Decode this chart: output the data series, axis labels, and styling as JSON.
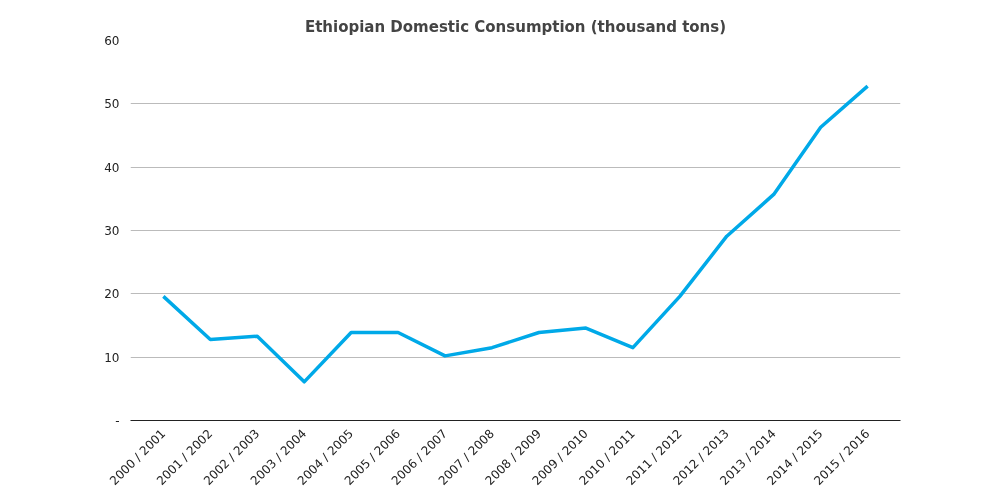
{
  "chart_data": {
    "type": "line",
    "title": "Ethiopian Domestic Consumption (thousand tons)",
    "categories": [
      "2000 / 2001",
      "2001 / 2002",
      "2002 / 2003",
      "2003 / 2004",
      "2004 / 2005",
      "2005 / 2006",
      "2006 / 2007",
      "2007 / 2008",
      "2008 / 2009",
      "2009 / 2010",
      "2010 / 2011",
      "2011 / 2012",
      "2012 / 2013",
      "2013 / 2014",
      "2014 / 2015",
      "2015 / 2016"
    ],
    "series": [
      {
        "color": "#00a9e8",
        "values": [
          19.6,
          12.8,
          13.3,
          6.1,
          13.9,
          13.9,
          10.2,
          11.5,
          13.9,
          14.6,
          11.5,
          19.6,
          29.1,
          35.7,
          46.3,
          52.8
        ]
      }
    ],
    "ylim": [
      0,
      60
    ],
    "yticks": [
      {
        "value": 0,
        "label": "-"
      },
      10,
      20,
      30,
      40,
      50,
      60
    ],
    "grid": "y",
    "marker": "none",
    "line_style": "solid"
  }
}
